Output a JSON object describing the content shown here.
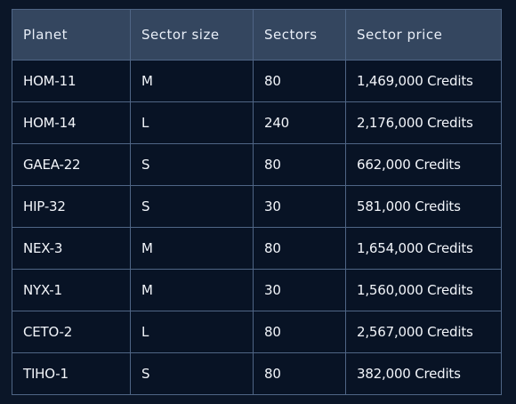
{
  "table": {
    "headers": [
      "Planet",
      "Sector size",
      "Sectors",
      "Sector price"
    ],
    "rows": [
      [
        "HOM-11",
        "M",
        "80",
        "1,469,000 Credits"
      ],
      [
        "HOM-14",
        "L",
        "240",
        "2,176,000 Credits"
      ],
      [
        "GAEA-22",
        "S",
        "80",
        "662,000 Credits"
      ],
      [
        "HIP-32",
        "S",
        "30",
        "581,000 Credits"
      ],
      [
        "NEX-3",
        "M",
        "80",
        "1,654,000 Credits"
      ],
      [
        "NYX-1",
        "M",
        "30",
        "1,560,000 Credits"
      ],
      [
        "CETO-2",
        "L",
        "80",
        "2,567,000 Credits"
      ],
      [
        "TIHO-1",
        "S",
        "80",
        "382,000 Credits"
      ]
    ]
  }
}
